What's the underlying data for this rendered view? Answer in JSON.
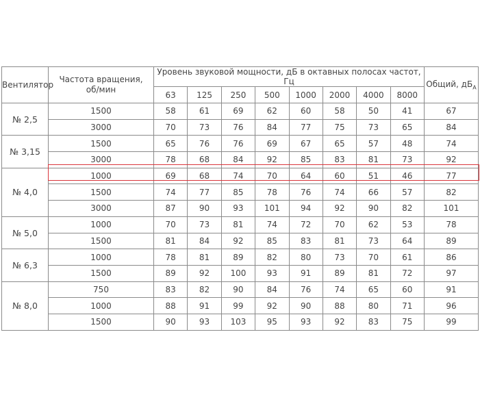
{
  "header": {
    "fan": "Вентилятор",
    "speed": "Частота вращения,\nоб/мин",
    "levels": "Уровень звуковой мощности, дБ в октавных полосах частот, Гц",
    "bands": [
      63,
      125,
      250,
      500,
      1000,
      2000,
      4000,
      8000
    ],
    "total": "Общий, дБ",
    "total_sub": "А"
  },
  "groups": [
    {
      "fan": "№ 2,5",
      "rows": [
        {
          "speed": 1500,
          "levels": [
            58,
            61,
            69,
            62,
            60,
            58,
            50,
            41
          ],
          "total": 67
        },
        {
          "speed": 3000,
          "levels": [
            70,
            73,
            76,
            84,
            77,
            75,
            73,
            65
          ],
          "total": 84
        }
      ]
    },
    {
      "fan": "№ 3,15",
      "rows": [
        {
          "speed": 1500,
          "levels": [
            65,
            76,
            76,
            69,
            67,
            65,
            57,
            48
          ],
          "total": 74
        },
        {
          "speed": 3000,
          "levels": [
            78,
            68,
            84,
            92,
            85,
            83,
            81,
            73
          ],
          "total": 92
        }
      ]
    },
    {
      "fan": "№ 4,0",
      "rows": [
        {
          "speed": 1000,
          "levels": [
            69,
            68,
            74,
            70,
            64,
            60,
            51,
            46
          ],
          "total": 77
        },
        {
          "speed": 1500,
          "levels": [
            74,
            77,
            85,
            78,
            76,
            74,
            66,
            57
          ],
          "total": 82
        },
        {
          "speed": 3000,
          "levels": [
            87,
            90,
            93,
            101,
            94,
            92,
            90,
            82
          ],
          "total": 101
        }
      ]
    },
    {
      "fan": "№ 5,0",
      "rows": [
        {
          "speed": 1000,
          "levels": [
            70,
            73,
            81,
            74,
            72,
            70,
            62,
            53
          ],
          "total": 78
        },
        {
          "speed": 1500,
          "levels": [
            81,
            84,
            92,
            85,
            83,
            81,
            73,
            64
          ],
          "total": 89
        }
      ]
    },
    {
      "fan": "№ 6,3",
      "rows": [
        {
          "speed": 1000,
          "levels": [
            78,
            81,
            89,
            82,
            80,
            73,
            70,
            61
          ],
          "total": 86
        },
        {
          "speed": 1500,
          "levels": [
            89,
            92,
            100,
            93,
            91,
            89,
            81,
            72
          ],
          "total": 97
        }
      ]
    },
    {
      "fan": "№ 8,0",
      "rows": [
        {
          "speed": 750,
          "levels": [
            83,
            82,
            90,
            84,
            76,
            74,
            65,
            60
          ],
          "total": 91
        },
        {
          "speed": 1000,
          "levels": [
            88,
            91,
            99,
            92,
            90,
            88,
            80,
            71
          ],
          "total": 96
        },
        {
          "speed": 1500,
          "levels": [
            90,
            93,
            103,
            95,
            93,
            92,
            83,
            75
          ],
          "total": 99
        }
      ]
    }
  ]
}
